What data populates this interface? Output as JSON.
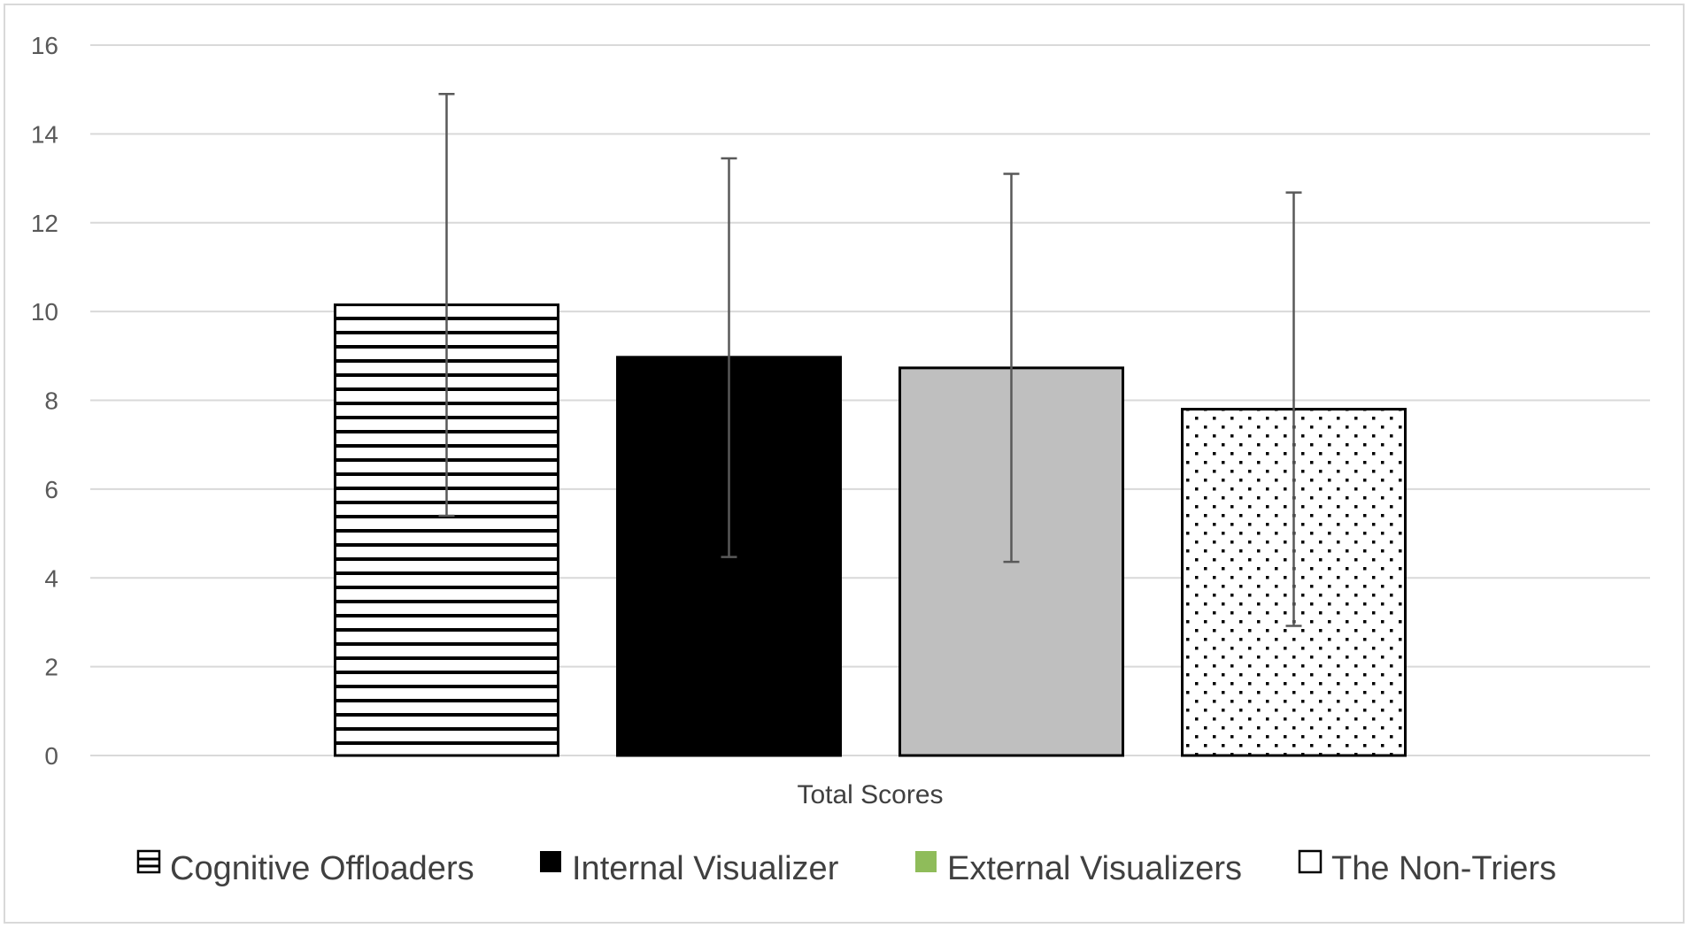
{
  "chart_data": {
    "type": "bar",
    "categories": [
      "Total Scores"
    ],
    "xlabel": "Total Scores",
    "ylabel": "",
    "ylim": [
      0,
      16
    ],
    "yticks": [
      0,
      2,
      4,
      6,
      8,
      10,
      12,
      14,
      16
    ],
    "grid": true,
    "legend_position": "bottom",
    "error_bars": true,
    "series": [
      {
        "name": "Cognitive Offloaders",
        "values": [
          10.15
        ],
        "error_low": [
          5.4
        ],
        "error_high": [
          14.9
        ],
        "fill": "horizontal-stripes",
        "legend_color": "#ffffff"
      },
      {
        "name": "Internal Visualizer",
        "values": [
          8.97
        ],
        "error_low": [
          4.47
        ],
        "error_high": [
          13.45
        ],
        "fill": "solid",
        "color": "#000000",
        "legend_color": "#000000"
      },
      {
        "name": "External Visualizers",
        "values": [
          8.73
        ],
        "error_low": [
          4.36
        ],
        "error_high": [
          13.1
        ],
        "fill": "solid",
        "color": "#bfbfbf",
        "legend_color": "#8fbc5a"
      },
      {
        "name": "The Non-Triers",
        "values": [
          7.8
        ],
        "error_low": [
          2.92
        ],
        "error_high": [
          12.68
        ],
        "fill": "dots",
        "legend_color": "#ffffff"
      }
    ]
  }
}
